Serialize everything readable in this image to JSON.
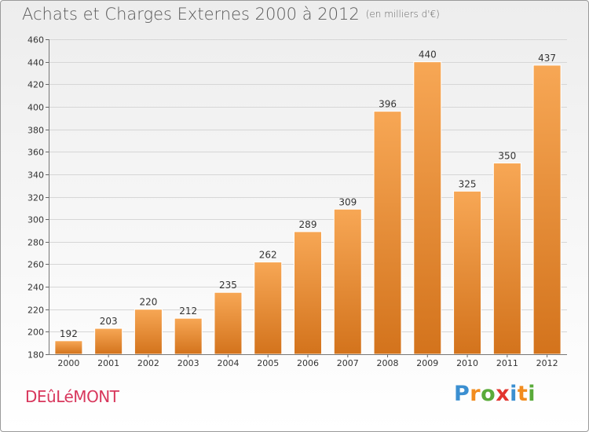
{
  "header": {
    "title": "Achats et Charges Externes 2000 à 2012",
    "subtitle": "(en milliers d'€)"
  },
  "footer": {
    "commune": "DEûLéMONT",
    "logo_letters": [
      {
        "ch": "P",
        "color": "#3b8fd1"
      },
      {
        "ch": "r",
        "color": "#f28c1e"
      },
      {
        "ch": "o",
        "color": "#5aab3a"
      },
      {
        "ch": "x",
        "color": "#e2352f"
      },
      {
        "ch": "i",
        "color": "#3b8fd1"
      },
      {
        "ch": "t",
        "color": "#f28c1e"
      },
      {
        "ch": "i",
        "color": "#5aab3a"
      }
    ]
  },
  "chart_data": {
    "type": "bar",
    "categories": [
      "2000",
      "2001",
      "2002",
      "2003",
      "2004",
      "2005",
      "2006",
      "2007",
      "2008",
      "2009",
      "2010",
      "2011",
      "2012"
    ],
    "values": [
      192,
      203,
      220,
      212,
      235,
      262,
      289,
      309,
      396,
      440,
      325,
      350,
      437
    ],
    "ylim": [
      180,
      460
    ],
    "yticks": [
      180,
      200,
      220,
      240,
      260,
      280,
      300,
      320,
      340,
      360,
      380,
      400,
      420,
      440,
      460
    ],
    "grid": true,
    "bar_color_top": "#f7a755",
    "bar_color_bottom": "#d3731c"
  }
}
